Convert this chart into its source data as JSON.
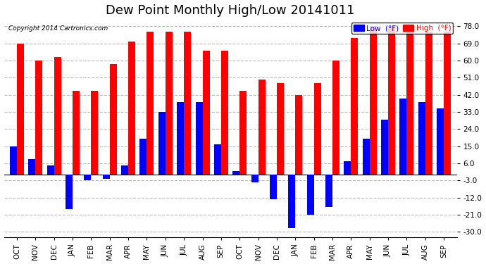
{
  "title": "Dew Point Monthly High/Low 20141011",
  "copyright": "Copyright 2014 Cartronics.com",
  "months": [
    "OCT",
    "NOV",
    "DEC",
    "JAN",
    "FEB",
    "MAR",
    "APR",
    "MAY",
    "JUN",
    "JUL",
    "AUG",
    "SEP",
    "OCT",
    "NOV",
    "DEC",
    "JAN",
    "FEB",
    "MAR",
    "APR",
    "MAY",
    "JUN",
    "JUL",
    "AUG",
    "SEP"
  ],
  "high_values": [
    69,
    60,
    62,
    44,
    44,
    58,
    70,
    75,
    75,
    75,
    65,
    65,
    44,
    50,
    48,
    42,
    48,
    60,
    72,
    78,
    78,
    78,
    75,
    75
  ],
  "low_values": [
    15,
    8,
    5,
    -18,
    -3,
    -2,
    5,
    19,
    33,
    38,
    38,
    16,
    2,
    -4,
    -13,
    -28,
    -21,
    -17,
    7,
    19,
    29,
    40,
    38,
    35
  ],
  "high_color": "#FF0000",
  "low_color": "#0000FF",
  "background_color": "#FFFFFF",
  "grid_color": "#BBBBBB",
  "ylim": [
    -33,
    82
  ],
  "yticks": [
    -30.0,
    -21.0,
    -12.0,
    -3.0,
    6.0,
    15.0,
    24.0,
    33.0,
    42.0,
    51.0,
    60.0,
    69.0,
    78.0
  ],
  "bar_width": 0.38,
  "title_fontsize": 13,
  "tick_fontsize": 7.5,
  "legend_low_label": "Low  (°F)",
  "legend_high_label": "High  (°F)"
}
